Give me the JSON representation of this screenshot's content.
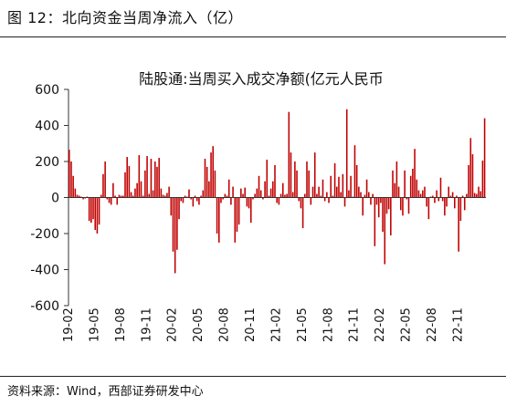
{
  "figure": {
    "title": "图 12：北向资金当周净流入（亿）",
    "source": "资料来源：Wind，西部证券研发中心"
  },
  "chart_data": {
    "type": "bar",
    "title": "陆股通:当周买入成交净额(亿元人民币",
    "xlabel": "",
    "ylabel": "",
    "ylim": [
      -600,
      600
    ],
    "yticks": [
      600,
      400,
      200,
      0,
      -200,
      -400,
      -600
    ],
    "ytick_labels": [
      "600",
      "400",
      "200",
      "0",
      "-200",
      "-400",
      "-600"
    ],
    "xtick_labels": [
      "19-02",
      "19-05",
      "19-08",
      "19-11",
      "20-02",
      "20-05",
      "20-08",
      "20-11",
      "21-02",
      "21-05",
      "21-08",
      "21-11",
      "22-02",
      "22-05",
      "22-08",
      "22-11"
    ],
    "xtick_positions": [
      0,
      13,
      26,
      39,
      52,
      65,
      78,
      91,
      104,
      117,
      130,
      143,
      156,
      169,
      182,
      195
    ],
    "bar_color": "#c00000",
    "values": [
      265,
      200,
      120,
      50,
      15,
      10,
      5,
      -10,
      -5,
      5,
      -130,
      -140,
      -120,
      -180,
      -200,
      -150,
      15,
      130,
      200,
      -10,
      -30,
      -40,
      80,
      10,
      -40,
      15,
      10,
      10,
      140,
      225,
      175,
      30,
      10,
      50,
      80,
      235,
      90,
      10,
      150,
      230,
      20,
      215,
      40,
      200,
      170,
      220,
      50,
      15,
      10,
      25,
      60,
      -100,
      -300,
      -420,
      -290,
      -120,
      -20,
      -30,
      10,
      5,
      45,
      -10,
      -50,
      10,
      -20,
      -40,
      10,
      40,
      215,
      170,
      90,
      250,
      285,
      150,
      -200,
      -250,
      -30,
      -10,
      20,
      10,
      100,
      -40,
      60,
      -250,
      -190,
      -150,
      50,
      20,
      55,
      -50,
      -60,
      -140,
      -10,
      20,
      50,
      120,
      40,
      -10,
      90,
      210,
      10,
      50,
      90,
      180,
      -30,
      -40,
      20,
      80,
      15,
      20,
      475,
      250,
      30,
      200,
      150,
      -20,
      -60,
      -170,
      20,
      200,
      150,
      -40,
      60,
      250,
      20,
      60,
      10,
      100,
      -20,
      30,
      -30,
      120,
      10,
      190,
      60,
      115,
      30,
      130,
      -50,
      490,
      40,
      120,
      5,
      290,
      180,
      60,
      30,
      -100,
      15,
      100,
      30,
      -40,
      20,
      -270,
      -40,
      -110,
      -30,
      -190,
      -370,
      -90,
      -65,
      -210,
      150,
      80,
      200,
      60,
      -70,
      -100,
      150,
      -10,
      -90,
      120,
      160,
      270,
      100,
      40,
      20,
      40,
      60,
      -50,
      -120,
      5,
      10,
      -30,
      40,
      -20,
      110,
      -20,
      -100,
      -50,
      60,
      10,
      30,
      -60,
      10,
      -300,
      -130,
      10,
      -70,
      20,
      180,
      330,
      240,
      25,
      20,
      60,
      35,
      205,
      440
    ]
  }
}
